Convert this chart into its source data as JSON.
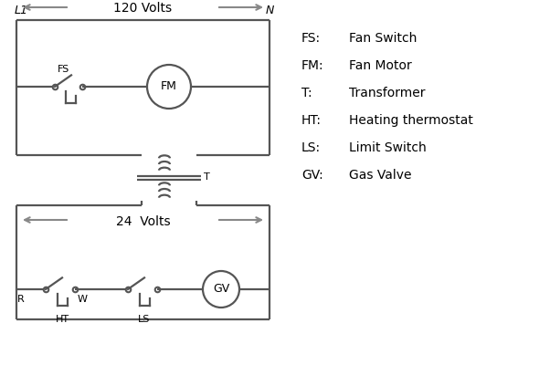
{
  "bg_color": "#ffffff",
  "line_color": "#555555",
  "arrow_color": "#888888",
  "text_color": "#000000",
  "line_width": 1.6,
  "legend_items": [
    [
      "FS:",
      "Fan Switch"
    ],
    [
      "FM:",
      "Fan Motor"
    ],
    [
      "T:",
      "Transformer"
    ],
    [
      "HT:",
      "Heating thermostat"
    ],
    [
      "LS:",
      "Limit Switch"
    ],
    [
      "GV:",
      "Gas Valve"
    ]
  ],
  "title_L1": "L1",
  "title_N": "N",
  "label_120": "120 Volts",
  "label_24": "24  Volts",
  "label_T": "T",
  "label_FS": "FS",
  "label_FM": "FM",
  "label_GV": "GV",
  "label_R": "R",
  "label_W": "W",
  "label_HT": "HT",
  "label_LS": "LS"
}
